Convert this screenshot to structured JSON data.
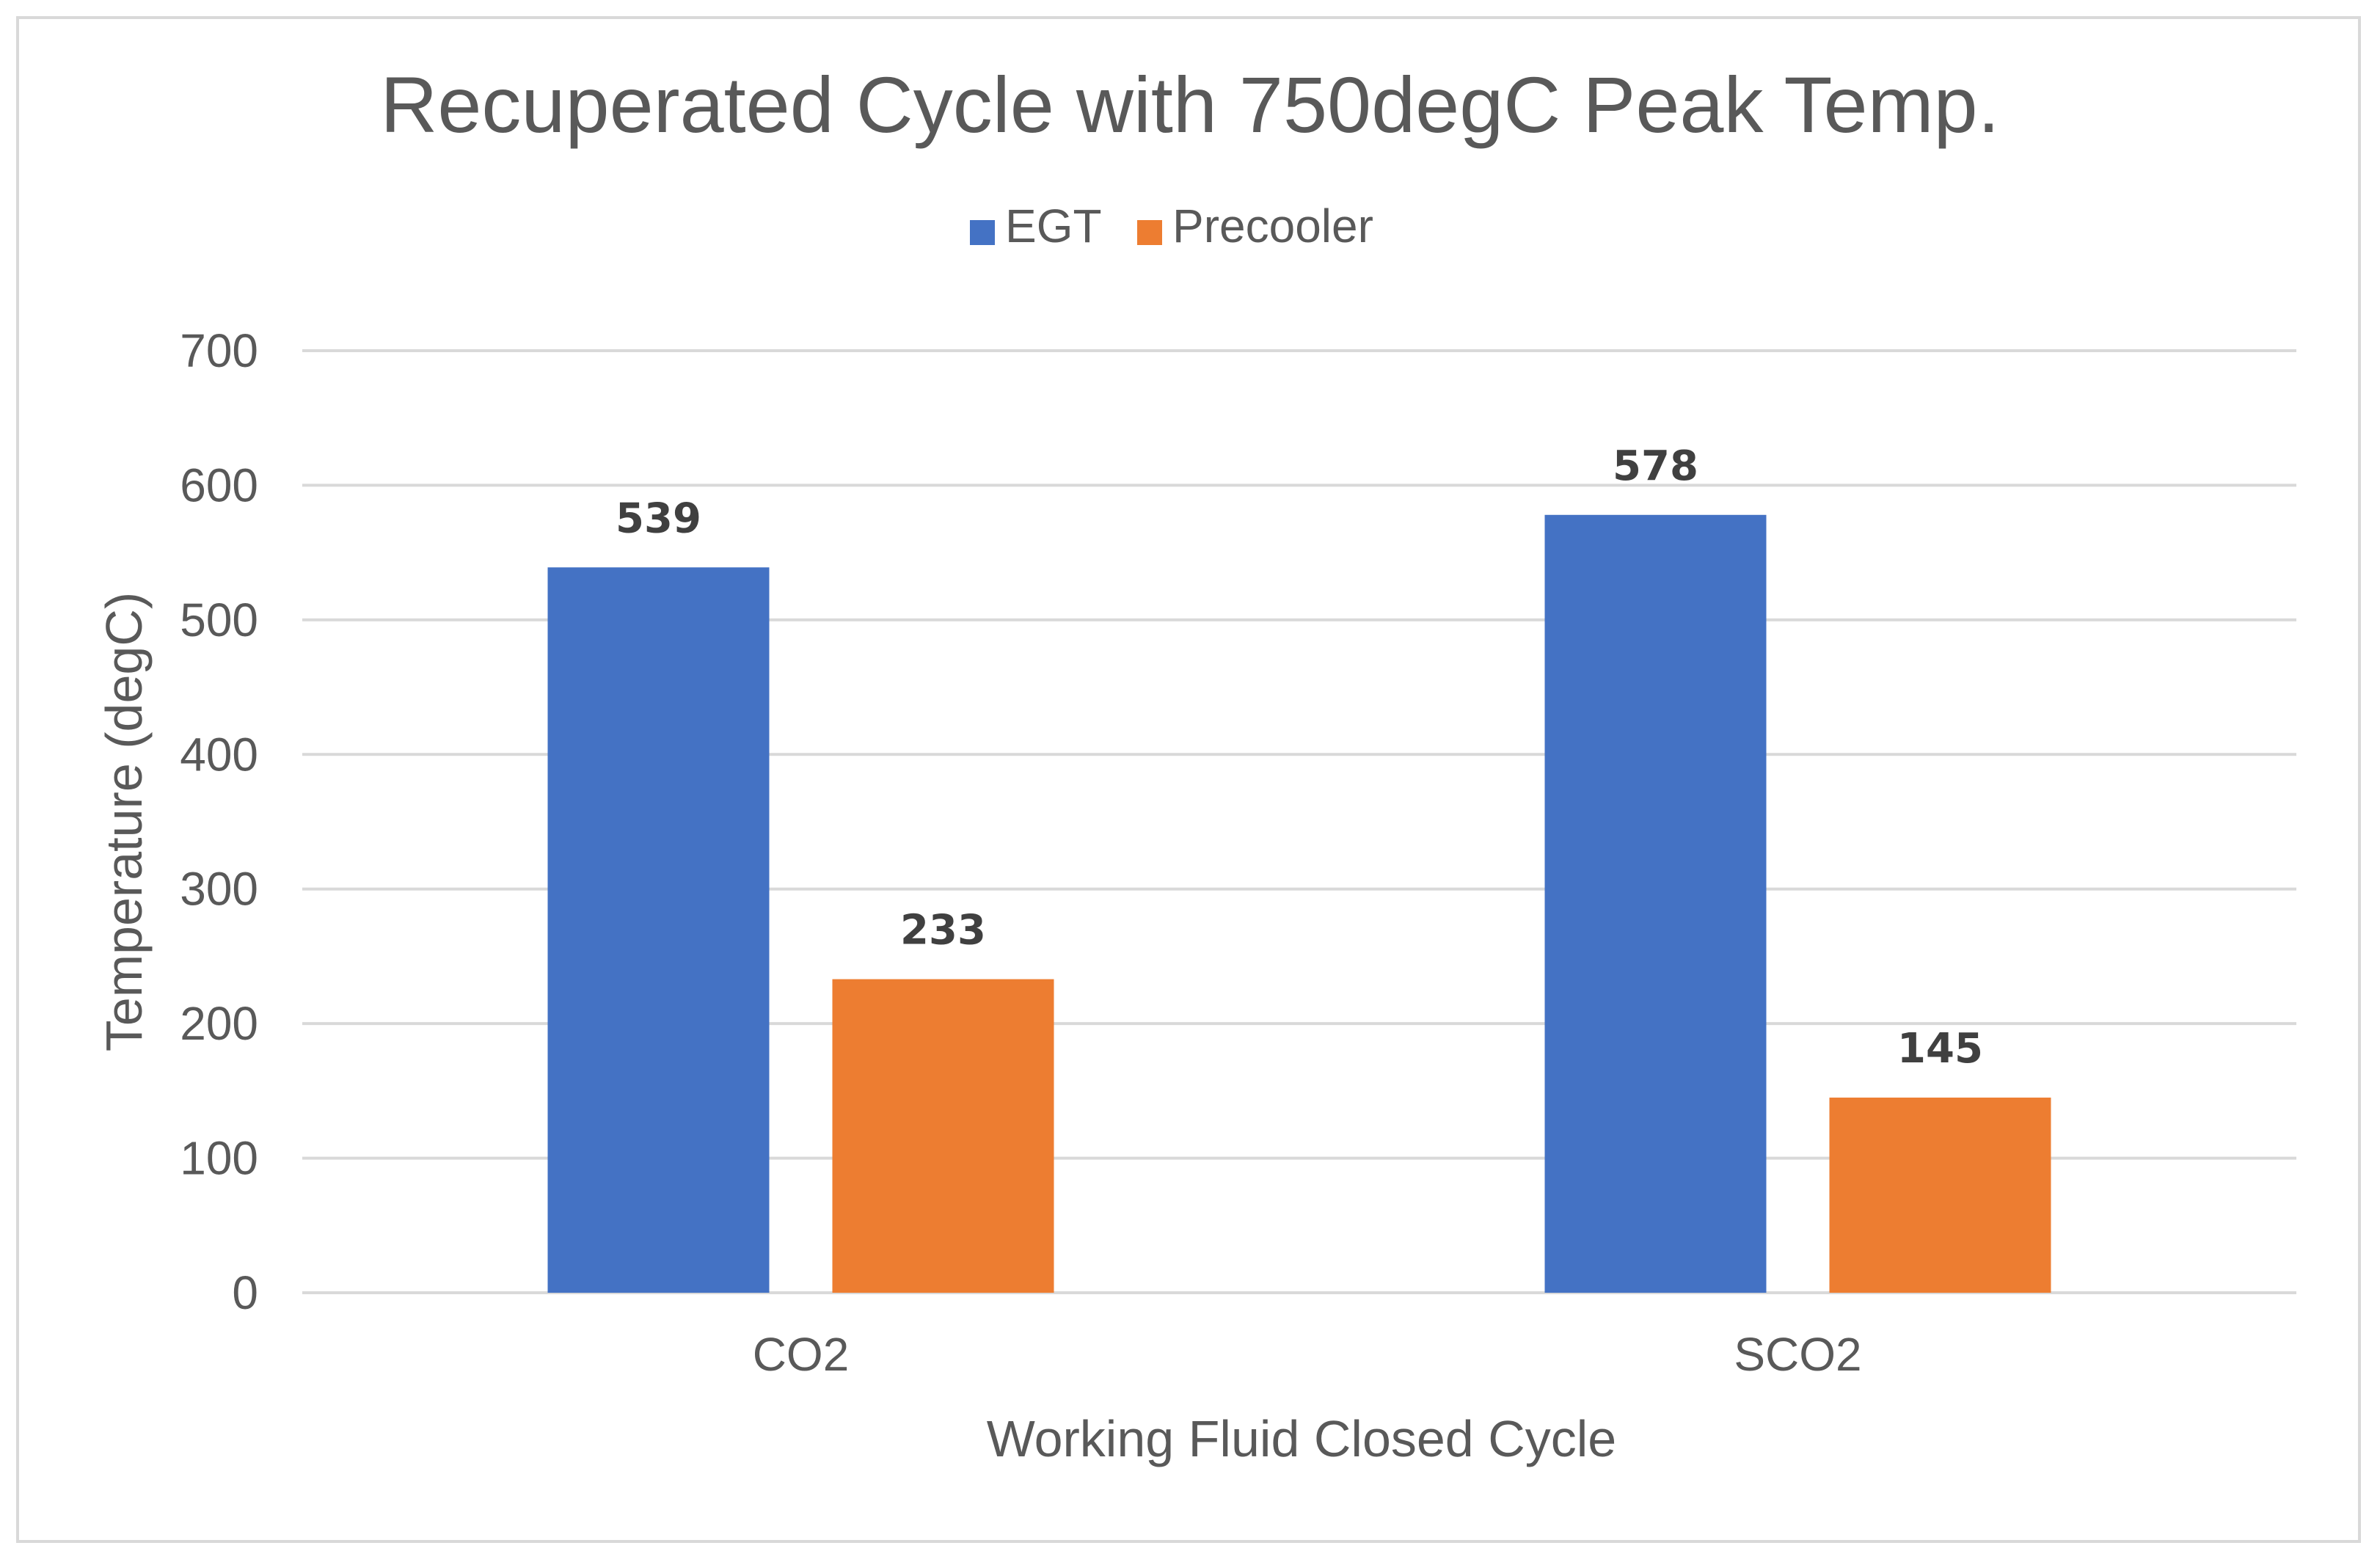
{
  "chart_data": {
    "type": "bar",
    "title": "Recuperated Cycle with 750degC Peak Temp.",
    "xlabel": "Working Fluid Closed Cycle",
    "ylabel": "Temperature (degC)",
    "categories": [
      "CO2",
      "SCO2"
    ],
    "series": [
      {
        "name": "EGT",
        "color": "#4472C4",
        "values": [
          539,
          578
        ]
      },
      {
        "name": "Precooler",
        "color": "#ED7D31",
        "values": [
          233,
          145
        ]
      }
    ],
    "ylim": [
      0,
      700
    ],
    "yticks": [
      0,
      100,
      200,
      300,
      400,
      500,
      600,
      700
    ],
    "grid": true,
    "legend_position": "top-center",
    "data_labels": true
  },
  "colors": {
    "gridline": "#d9d9d9",
    "text": "#595959",
    "data_label": "#404040",
    "border": "#d9d9d9"
  }
}
